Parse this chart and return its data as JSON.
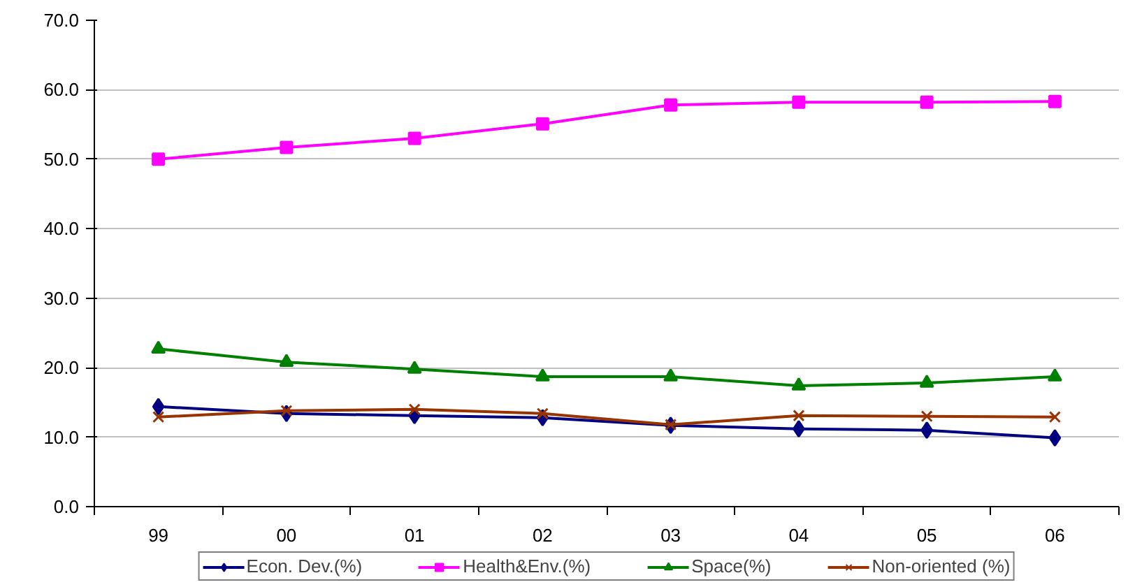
{
  "chart_data": {
    "type": "line",
    "categories": [
      "99",
      "00",
      "01",
      "02",
      "03",
      "04",
      "05",
      "06"
    ],
    "ylim": [
      0,
      70
    ],
    "yticks": [
      {
        "value": 0,
        "label": "0.0"
      },
      {
        "value": 10,
        "label": "10.0"
      },
      {
        "value": 20,
        "label": "20.0"
      },
      {
        "value": 30,
        "label": "30.0"
      },
      {
        "value": 40,
        "label": "40.0"
      },
      {
        "value": 50,
        "label": "50.0"
      },
      {
        "value": 60,
        "label": "60.0"
      },
      {
        "value": 70,
        "label": "70.0"
      }
    ],
    "grid": "y",
    "legend": "bottom",
    "line_style": "solid",
    "series": [
      {
        "name": "Econ. Dev.(%)",
        "color": "#000080",
        "marker": "diamond",
        "values": [
          14.4,
          13.4,
          13.1,
          12.8,
          11.7,
          11.2,
          11.0,
          9.9
        ]
      },
      {
        "name": "Health&Env.(%)",
        "color": "#ff00ff",
        "marker": "square",
        "values": [
          50.0,
          51.7,
          53.0,
          55.1,
          57.8,
          58.2,
          58.2,
          58.3
        ]
      },
      {
        "name": "Space(%)",
        "color": "#008000",
        "marker": "triangle",
        "values": [
          22.7,
          20.8,
          19.8,
          18.7,
          18.7,
          17.4,
          17.8,
          18.7
        ]
      },
      {
        "name": "Non-oriented (%)",
        "color": "#993300",
        "marker": "cross",
        "values": [
          12.9,
          13.8,
          14.0,
          13.4,
          11.8,
          13.1,
          13.0,
          12.9
        ]
      }
    ]
  }
}
